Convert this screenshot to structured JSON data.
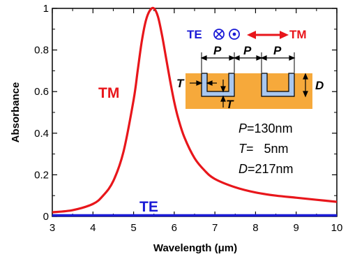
{
  "chart_data": {
    "type": "line",
    "xlabel": "Wavelength (μm)",
    "ylabel": "Absorbance",
    "xlim": [
      3,
      10
    ],
    "ylim": [
      0,
      1
    ],
    "xticks": [
      3,
      4,
      5,
      6,
      7,
      8,
      9,
      10
    ],
    "yticks": [
      0,
      0.2,
      0.4,
      0.6,
      0.8,
      1
    ],
    "xtick_labels": [
      "3",
      "4",
      "5",
      "6",
      "7",
      "8",
      "9",
      "10"
    ],
    "ytick_labels": [
      "0",
      "0.2",
      "0.4",
      "0.6",
      "0.8",
      "1"
    ],
    "grid": false,
    "series": [
      {
        "name": "TM",
        "color": "#e8161b",
        "x": [
          3.0,
          3.5,
          4.0,
          4.25,
          4.5,
          4.75,
          5.0,
          5.1,
          5.2,
          5.3,
          5.4,
          5.5,
          5.6,
          5.7,
          5.8,
          5.9,
          6.0,
          6.1,
          6.25,
          6.5,
          6.75,
          7.0,
          7.5,
          8.0,
          8.5,
          9.0,
          9.5,
          10.0
        ],
        "y": [
          0.02,
          0.03,
          0.06,
          0.1,
          0.17,
          0.31,
          0.56,
          0.7,
          0.84,
          0.94,
          0.99,
          1.0,
          0.96,
          0.87,
          0.76,
          0.65,
          0.55,
          0.47,
          0.38,
          0.28,
          0.22,
          0.18,
          0.14,
          0.115,
          0.1,
          0.09,
          0.08,
          0.07
        ]
      },
      {
        "name": "TE",
        "color": "#1a1ad6",
        "x": [
          3.0,
          10.0
        ],
        "y": [
          0.005,
          0.005
        ]
      }
    ]
  },
  "inset": {
    "pol_te": "TE",
    "pol_tm": "TM",
    "dim_p": "P",
    "dim_t": "T",
    "dim_d": "D",
    "params": [
      {
        "sym": "P",
        "rest": "=130nm"
      },
      {
        "sym": "T",
        "rest": "=   5nm"
      },
      {
        "sym": "D",
        "rest": "=217nm"
      }
    ]
  },
  "colors": {
    "substrate": "#f6a93b",
    "coating": "#a9c7ef",
    "tm": "#e8161b",
    "te": "#1a1ad6",
    "axis": "#000000"
  }
}
